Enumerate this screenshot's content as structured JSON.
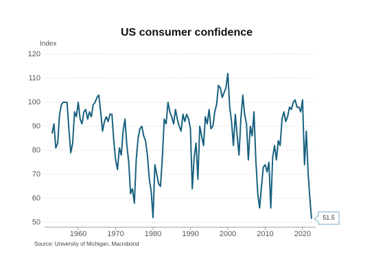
{
  "chart_data": {
    "type": "line",
    "title": "US consumer confidence",
    "y_label": "Index",
    "source": "Source: University of Michigan, Macrobond",
    "color": "#17607f",
    "xlim": [
      1951,
      2023.5
    ],
    "ylim": [
      48,
      120
    ],
    "xticks": [
      1960,
      1970,
      1980,
      1990,
      2000,
      2010,
      2020
    ],
    "yticks": [
      50,
      60,
      70,
      80,
      90,
      100,
      110,
      120
    ],
    "grid": true,
    "x": [
      1953,
      1953.5,
      1954,
      1954.5,
      1955,
      1955.5,
      1956,
      1956.5,
      1957,
      1957.5,
      1958,
      1958.5,
      1959,
      1959.5,
      1960,
      1960.5,
      1961,
      1961.5,
      1962,
      1962.5,
      1963,
      1963.5,
      1964,
      1964.5,
      1965,
      1965.5,
      1966,
      1966.5,
      1967,
      1967.5,
      1968,
      1968.5,
      1969,
      1969.5,
      1970,
      1970.5,
      1971,
      1971.5,
      1972,
      1972.5,
      1973,
      1973.5,
      1974,
      1974.5,
      1975,
      1975.5,
      1976,
      1976.5,
      1977,
      1977.5,
      1978,
      1978.5,
      1979,
      1979.5,
      1980,
      1980.5,
      1981,
      1981.5,
      1982,
      1982.5,
      1983,
      1983.5,
      1984,
      1984.5,
      1985,
      1985.5,
      1986,
      1986.5,
      1987,
      1987.5,
      1988,
      1988.5,
      1989,
      1989.5,
      1990,
      1990.5,
      1991,
      1991.5,
      1992,
      1992.5,
      1993,
      1993.5,
      1994,
      1994.5,
      1995,
      1995.5,
      1996,
      1996.5,
      1997,
      1997.5,
      1998,
      1998.5,
      1999,
      1999.5,
      2000,
      2000.5,
      2001,
      2001.5,
      2002,
      2002.5,
      2003,
      2003.5,
      2004,
      2004.5,
      2005,
      2005.5,
      2006,
      2006.5,
      2007,
      2007.5,
      2008,
      2008.5,
      2009,
      2009.5,
      2010,
      2010.5,
      2011,
      2011.5,
      2012,
      2012.5,
      2013,
      2013.5,
      2014,
      2014.5,
      2015,
      2015.5,
      2016,
      2016.5,
      2017,
      2017.5,
      2018,
      2018.5,
      2019,
      2019.5,
      2020,
      2020.5,
      2021,
      2021.5,
      2022,
      2022.4
    ],
    "values": [
      87,
      91,
      81,
      83,
      95,
      99,
      100,
      100,
      100,
      89,
      79,
      83,
      96,
      94,
      100,
      93,
      91,
      96,
      97,
      93,
      96,
      94,
      99,
      100,
      102,
      103,
      96,
      88,
      92,
      94,
      92,
      95,
      95,
      84,
      76,
      72,
      81,
      78,
      88,
      93,
      82,
      75,
      62,
      64,
      58,
      76,
      85,
      89,
      90,
      86,
      84,
      78,
      68,
      63,
      52,
      74,
      70,
      66,
      65,
      77,
      93,
      91,
      100,
      96,
      94,
      91,
      97,
      93,
      90,
      88,
      95,
      92,
      95,
      93,
      89,
      64,
      77,
      83,
      68,
      90,
      86,
      82,
      94,
      91,
      97,
      89,
      90,
      96,
      99,
      107,
      106,
      102,
      104,
      106,
      112,
      98,
      92,
      82,
      95,
      86,
      78,
      93,
      103,
      95,
      91,
      76,
      90,
      86,
      96,
      76,
      62,
      56,
      65,
      73,
      74,
      71,
      75,
      56,
      77,
      82,
      76,
      84,
      82,
      93,
      96,
      92,
      94,
      98,
      97,
      100,
      101,
      98,
      98,
      96,
      101,
      74,
      88,
      70,
      59,
      51.5
    ]
  }
}
